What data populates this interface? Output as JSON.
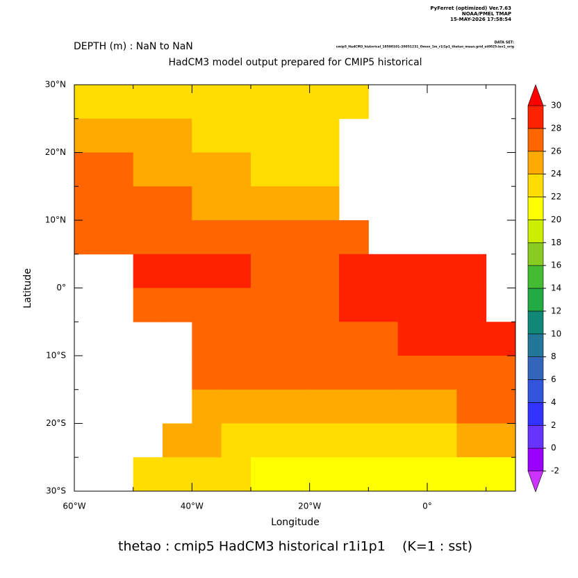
{
  "chart_data": {
    "type": "heatmap",
    "header_lines": [
      "PyFerret (optimized) Ver.7.63",
      "NOAA/PMEL TMAP",
      "15-MAY-2026 17:58:54"
    ],
    "dataset_label": "DATA SET:",
    "dataset": "cmip5_HadCM3_historical_18590101-20051231_Omon_1m_r1i1p1_thetao_mean.grid_at0025-lev1_orig",
    "subtitle": "DEPTH (m) : NaN to NaN",
    "title": "HadCM3 model output prepared for CMIP5 historical",
    "xlabel": "Longitude",
    "ylabel": "Latitude",
    "footer": "thetao : cmip5 HadCM3 historical r1i1p1    (K=1 : sst)",
    "xlim": [
      -60,
      15
    ],
    "ylim": [
      -30,
      30
    ],
    "xticks": [
      {
        "value": -60,
        "label": "60°W"
      },
      {
        "value": -40,
        "label": "40°W"
      },
      {
        "value": -20,
        "label": "20°W"
      },
      {
        "value": 0,
        "label": "0°"
      }
    ],
    "xminorticks": [
      -50,
      -30,
      -10,
      10
    ],
    "yticks": [
      {
        "value": 30,
        "label": "30°N"
      },
      {
        "value": 20,
        "label": "20°N"
      },
      {
        "value": 10,
        "label": "10°N"
      },
      {
        "value": 0,
        "label": "0°"
      },
      {
        "value": -10,
        "label": "10°S"
      },
      {
        "value": -20,
        "label": "20°S"
      },
      {
        "value": -30,
        "label": "30°S"
      }
    ],
    "yminorticks": [
      25,
      15,
      5,
      -5,
      -15,
      -25
    ],
    "x": [
      -57.5,
      -52.5,
      -47.5,
      -42.5,
      -37.5,
      -32.5,
      -27.5,
      -22.5,
      -17.5,
      -12.5,
      -7.5,
      -2.5,
      2.5,
      7.5,
      12.5
    ],
    "y": [
      27.5,
      22.5,
      17.5,
      12.5,
      7.5,
      2.5,
      -2.5,
      -7.5,
      -12.5,
      -17.5,
      -22.5,
      -27.5
    ],
    "z": [
      [
        23.5,
        23.5,
        23,
        23,
        23,
        22.5,
        22,
        22,
        22,
        22,
        null,
        null,
        null,
        null,
        null
      ],
      [
        25.5,
        25,
        24.5,
        24,
        23.5,
        23,
        23,
        22.5,
        22,
        null,
        null,
        null,
        null,
        null,
        null
      ],
      [
        26,
        26,
        25.5,
        25,
        24.5,
        24,
        23.5,
        23.5,
        23,
        null,
        null,
        null,
        null,
        null,
        null
      ],
      [
        26.5,
        26.5,
        26,
        26,
        25.5,
        25.5,
        25,
        25,
        25,
        null,
        null,
        null,
        null,
        null,
        null
      ],
      [
        27,
        27,
        27.5,
        27,
        27,
        27,
        27,
        27.5,
        27.5,
        27.5,
        null,
        null,
        null,
        null,
        null
      ],
      [
        null,
        null,
        28,
        28,
        28,
        28,
        27.5,
        27.5,
        27.5,
        28,
        28,
        28,
        28,
        28,
        null
      ],
      [
        null,
        null,
        27,
        27,
        27,
        27,
        27,
        27.5,
        27.5,
        28,
        28,
        28,
        28,
        28,
        null
      ],
      [
        null,
        null,
        null,
        null,
        27,
        27.5,
        27.5,
        27,
        27,
        27,
        27.5,
        28,
        28,
        28.5,
        28
      ],
      [
        null,
        null,
        null,
        null,
        26.5,
        26.5,
        26,
        26,
        26,
        26.5,
        26.5,
        27,
        27,
        27,
        27
      ],
      [
        null,
        null,
        null,
        null,
        25.5,
        25,
        25,
        24.5,
        24.5,
        25,
        25,
        25.5,
        25.5,
        26,
        26
      ],
      [
        null,
        null,
        null,
        24,
        24,
        23.5,
        23.5,
        23,
        22.5,
        22.5,
        22.5,
        23,
        23.5,
        24,
        25
      ],
      [
        null,
        null,
        22.5,
        22.5,
        22,
        22,
        21.5,
        21,
        21,
        20.5,
        20.5,
        20.5,
        21,
        21.5,
        21.5
      ]
    ],
    "colorbar": {
      "ticks": [
        -2,
        0,
        2,
        4,
        6,
        8,
        10,
        12,
        14,
        16,
        18,
        20,
        22,
        24,
        26,
        28,
        30
      ],
      "colors": [
        "#cc33ff",
        "#9900ff",
        "#6633ff",
        "#3333ff",
        "#3355dd",
        "#3366bb",
        "#227799",
        "#118877",
        "#22aa44",
        "#44bb33",
        "#88cc22",
        "#ccee00",
        "#ffff00",
        "#ffdd00",
        "#ffaa00",
        "#ff6600",
        "#ff2200",
        "#ff0000"
      ]
    }
  }
}
